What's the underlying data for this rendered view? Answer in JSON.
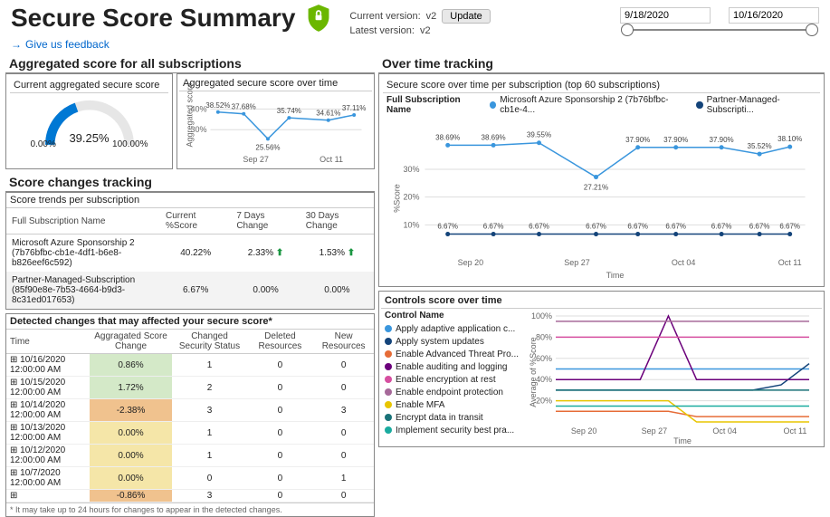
{
  "title": "Secure Score Summary",
  "feedback_label": "Give us feedback",
  "version": {
    "current_label": "Current version:",
    "current_value": "v2",
    "latest_label": "Latest version:",
    "latest_value": "v2",
    "update_btn": "Update"
  },
  "date_range": {
    "from": "9/18/2020",
    "to": "10/16/2020"
  },
  "colors": {
    "accent_blue": "#0078d4",
    "ms_series": "#3a96dd",
    "partner_series": "#14447a",
    "gauge_fill": "#0078d4",
    "gauge_track": "#e6e6e6"
  },
  "agg": {
    "section_title": "Aggregated score for all subscriptions",
    "gauge_title": "Current aggregated secure score",
    "gauge_value": "39.25%",
    "gauge_min": "0.00%",
    "gauge_max": "100.00%",
    "gauge_pct": 39.25,
    "mini_title": "Aggregated secure score over time",
    "mini_ylabel": "Aggregated score",
    "mini_yticks": [
      "30%",
      "40%"
    ],
    "mini_xticks": [
      "Sep 27",
      "Oct 11"
    ],
    "mini_points": [
      {
        "x": 0.05,
        "y": 38.52,
        "label": "38.52%"
      },
      {
        "x": 0.22,
        "y": 37.68,
        "label": "37.68%"
      },
      {
        "x": 0.38,
        "y": 25.56,
        "label": "25.56%",
        "dip": true
      },
      {
        "x": 0.52,
        "y": 35.74,
        "label": "35.74%"
      },
      {
        "x": 0.78,
        "y": 34.61,
        "label": "34.61%"
      },
      {
        "x": 0.95,
        "y": 37.11,
        "label": "37.11%"
      }
    ]
  },
  "tracking": {
    "section_title": "Over time tracking",
    "chart_title": "Secure score over time per subscription (top 60 subscriptions)",
    "legend_label": "Full Subscription Name",
    "series": [
      {
        "name": "Microsoft Azure Sponsorship 2 (7b76bfbc-cb1e-4...",
        "color": "#3a96dd",
        "points": [
          {
            "x": 0.06,
            "y": 38.69,
            "label": "38.69%"
          },
          {
            "x": 0.18,
            "y": 38.69,
            "label": "38.69%"
          },
          {
            "x": 0.3,
            "y": 39.55,
            "label": "39.55%"
          },
          {
            "x": 0.45,
            "y": 27.21,
            "label": "27.21%",
            "dip": true
          },
          {
            "x": 0.56,
            "y": 37.9,
            "label": "37.90%"
          },
          {
            "x": 0.66,
            "y": 37.9,
            "label": "37.90%"
          },
          {
            "x": 0.78,
            "y": 37.9,
            "label": "37.90%"
          },
          {
            "x": 0.88,
            "y": 35.52,
            "label": "35.52%"
          },
          {
            "x": 0.96,
            "y": 38.1,
            "label": "38.10%"
          }
        ]
      },
      {
        "name": "Partner-Managed-Subscripti...",
        "color": "#14447a",
        "points": [
          {
            "x": 0.06,
            "y": 6.67,
            "label": "6.67%"
          },
          {
            "x": 0.18,
            "y": 6.67,
            "label": "6.67%"
          },
          {
            "x": 0.3,
            "y": 6.67,
            "label": "6.67%"
          },
          {
            "x": 0.45,
            "y": 6.67,
            "label": "6.67%"
          },
          {
            "x": 0.56,
            "y": 6.67,
            "label": "6.67%"
          },
          {
            "x": 0.66,
            "y": 6.67,
            "label": "6.67%"
          },
          {
            "x": 0.78,
            "y": 6.67,
            "label": "6.67%"
          },
          {
            "x": 0.88,
            "y": 6.67,
            "label": "6.67%"
          },
          {
            "x": 0.96,
            "y": 6.67,
            "label": "6.67%"
          }
        ]
      }
    ],
    "ylabel": "%Score",
    "xlabel": "Time",
    "yticks": [
      "10%",
      "20%",
      "30%"
    ],
    "xticks": [
      "Sep 20",
      "Sep 27",
      "Oct 04",
      "Oct 11"
    ]
  },
  "trends": {
    "section_title": "Score changes tracking",
    "table_title": "Score trends per subscription",
    "cols": [
      "Full Subscription Name",
      "Current %Score",
      "7 Days Change",
      "30 Days Change"
    ],
    "rows": [
      {
        "name": "Microsoft Azure Sponsorship 2 (7b76bfbc-cb1e-4df1-b6e8-b826eef6c592)",
        "score": "40.22%",
        "d7": "2.33%",
        "d7up": true,
        "d30": "1.53%",
        "d30up": true
      },
      {
        "name": "Partner-Managed-Subscription (85f90e8e-7b53-4664-b9d3-8c31ed017653)",
        "score": "6.67%",
        "d7": "0.00%",
        "d7up": false,
        "d30": "0.00%",
        "d30up": false
      }
    ]
  },
  "changes": {
    "title": "Detected changes that may affected your secure score*",
    "cols": [
      "Time",
      "Aggragated Score Change",
      "Changed Security Status",
      "Deleted Resources",
      "New Resources"
    ],
    "rows": [
      {
        "t": "10/16/2020 12:00:00 AM",
        "sc": "0.86%",
        "cls": "hl-green",
        "c1": "1",
        "c2": "0",
        "c3": "0"
      },
      {
        "t": "10/15/2020 12:00:00 AM",
        "sc": "1.72%",
        "cls": "hl-green",
        "c1": "2",
        "c2": "0",
        "c3": "0"
      },
      {
        "t": "10/14/2020 12:00:00 AM",
        "sc": "-2.38%",
        "cls": "hl-orange",
        "c1": "3",
        "c2": "0",
        "c3": "3"
      },
      {
        "t": "10/13/2020 12:00:00 AM",
        "sc": "0.00%",
        "cls": "hl-yellow",
        "c1": "1",
        "c2": "0",
        "c3": "0"
      },
      {
        "t": "10/12/2020 12:00:00 AM",
        "sc": "0.00%",
        "cls": "hl-yellow",
        "c1": "1",
        "c2": "0",
        "c3": "0"
      },
      {
        "t": "10/7/2020 12:00:00 AM",
        "sc": "0.00%",
        "cls": "hl-yellow",
        "c1": "0",
        "c2": "0",
        "c3": "1"
      },
      {
        "t": "",
        "sc": "-0.86%",
        "cls": "hl-orange",
        "c1": "3",
        "c2": "0",
        "c3": "0"
      }
    ],
    "footnote": "* It may take up to 24 hours for changes to appear in the detected changes."
  },
  "controls": {
    "title": "Controls score over time",
    "legend_label": "Control Name",
    "ylabel": "Average of %Score",
    "xlabel": "Time",
    "yticks": [
      "20%",
      "40%",
      "60%",
      "80%",
      "100%"
    ],
    "xticks": [
      "Sep 20",
      "Sep 27",
      "Oct 04",
      "Oct 11"
    ],
    "series": [
      {
        "name": "Apply adaptive application c...",
        "color": "#3a96dd",
        "vals": [
          50,
          50,
          50,
          50,
          50,
          50,
          50,
          50,
          50,
          50
        ]
      },
      {
        "name": "Apply system updates",
        "color": "#14447a",
        "vals": [
          30,
          30,
          30,
          30,
          30,
          30,
          30,
          30,
          35,
          55
        ]
      },
      {
        "name": "Enable Advanced Threat Pro...",
        "color": "#e66c37",
        "vals": [
          10,
          10,
          10,
          10,
          10,
          5,
          5,
          5,
          5,
          5
        ]
      },
      {
        "name": "Enable auditing and logging",
        "color": "#6b007b",
        "vals": [
          40,
          40,
          40,
          40,
          100,
          40,
          40,
          40,
          40,
          40
        ]
      },
      {
        "name": "Enable encryption at rest",
        "color": "#d64fa0",
        "vals": [
          80,
          80,
          80,
          80,
          80,
          80,
          80,
          80,
          80,
          80
        ]
      },
      {
        "name": "Enable endpoint protection",
        "color": "#a66999",
        "vals": [
          95,
          95,
          95,
          95,
          95,
          95,
          95,
          95,
          95,
          95
        ]
      },
      {
        "name": "Enable MFA",
        "color": "#e8c500",
        "vals": [
          20,
          20,
          20,
          20,
          20,
          0,
          0,
          0,
          0,
          0
        ]
      },
      {
        "name": "Encrypt data in transit",
        "color": "#197278",
        "vals": [
          30,
          30,
          30,
          30,
          30,
          30,
          30,
          30,
          30,
          30
        ]
      },
      {
        "name": "Implement security best pra...",
        "color": "#1aab9f",
        "vals": [
          15,
          15,
          15,
          15,
          15,
          15,
          15,
          15,
          15,
          15
        ]
      }
    ]
  }
}
